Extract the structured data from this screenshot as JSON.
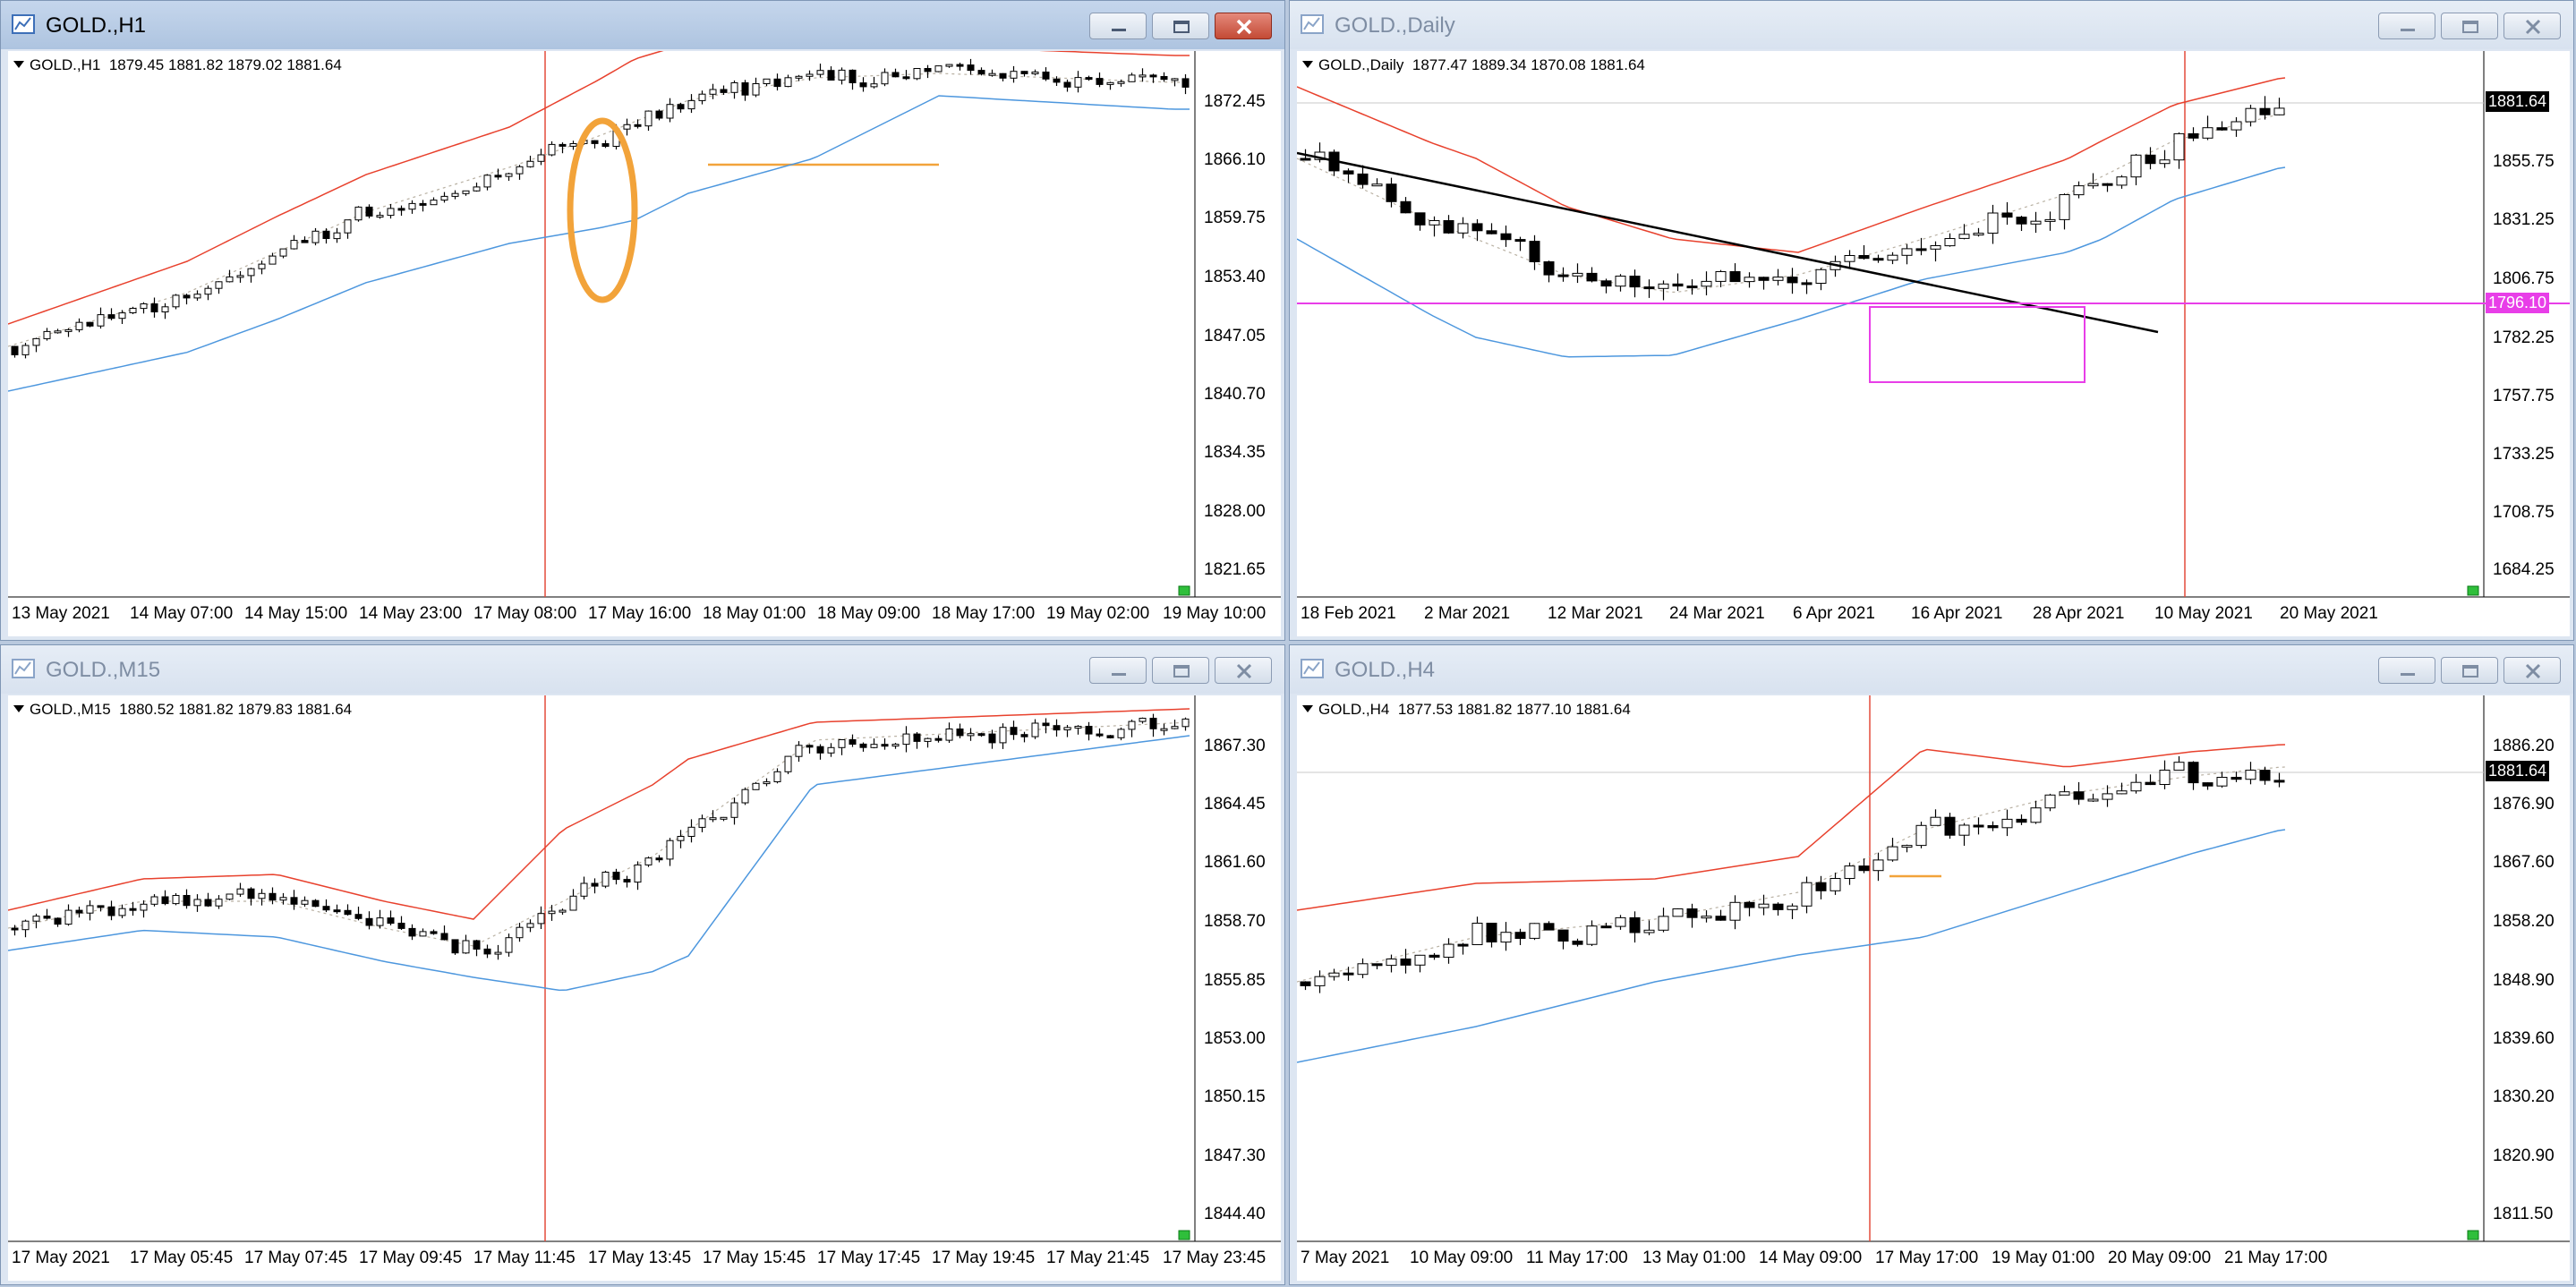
{
  "colors": {
    "bb_upper_lower_red": "#e8412d",
    "bb_blue": "#4d97de",
    "bb_mid": "#b9b1a3",
    "vline": "#e34b3b",
    "orange": "#f2a33a",
    "magenta": "#e83ee8",
    "bear_candle": "#000000",
    "bull_candle": "#ffffff"
  },
  "icons": [
    "chart-window-icon",
    "minimize-icon",
    "restore-icon",
    "close-icon",
    "dropdown-triangle-icon"
  ],
  "windows": [
    {
      "id": "h1",
      "title": "GOLD.,H1",
      "active": true,
      "symbol_label": "GOLD.,H1",
      "ohlc": "1879.45 1881.82 1879.02 1881.64",
      "price_ticks": [
        "1872.45",
        "1866.10",
        "1859.75",
        "1853.40",
        "1847.05",
        "1840.70",
        "1834.35",
        "1828.00",
        "1821.65"
      ],
      "time_ticks": [
        "13 May 2021",
        "14 May 07:00",
        "14 May 15:00",
        "14 May 23:00",
        "17 May 08:00",
        "17 May 16:00",
        "18 May 01:00",
        "18 May 09:00",
        "18 May 17:00",
        "19 May 02:00",
        "19 May 10:00"
      ]
    },
    {
      "id": "daily",
      "title": "GOLD.,Daily",
      "active": false,
      "symbol_label": "GOLD.,Daily",
      "ohlc": "1877.47 1889.34 1870.08 1881.64",
      "price_ticks": [
        "1855.75",
        "1831.25",
        "1806.75",
        "1782.25",
        "1757.75",
        "1733.25",
        "1708.75",
        "1684.25"
      ],
      "current_price": "1881.64",
      "level_price": "1796.10",
      "time_ticks": [
        "18 Feb 2021",
        "2 Mar 2021",
        "12 Mar 2021",
        "24 Mar 2021",
        "6 Apr 2021",
        "16 Apr 2021",
        "28 Apr 2021",
        "10 May 2021",
        "20 May 2021"
      ]
    },
    {
      "id": "m15",
      "title": "GOLD.,M15",
      "active": false,
      "symbol_label": "GOLD.,M15",
      "ohlc": "1880.52 1881.82 1879.83 1881.64",
      "price_ticks": [
        "1867.30",
        "1864.45",
        "1861.60",
        "1858.70",
        "1855.85",
        "1853.00",
        "1850.15",
        "1847.30",
        "1844.40"
      ],
      "time_ticks": [
        "17 May 2021",
        "17 May 05:45",
        "17 May 07:45",
        "17 May 09:45",
        "17 May 11:45",
        "17 May 13:45",
        "17 May 15:45",
        "17 May 17:45",
        "17 May 19:45",
        "17 May 21:45",
        "17 May 23:45"
      ]
    },
    {
      "id": "h4",
      "title": "GOLD.,H4",
      "active": false,
      "symbol_label": "GOLD.,H4",
      "ohlc": "1877.53 1881.82 1877.10 1881.64",
      "price_ticks": [
        "1886.20",
        "1876.90",
        "1867.60",
        "1858.20",
        "1848.90",
        "1839.60",
        "1830.20",
        "1820.90",
        "1811.50"
      ],
      "current_price": "1881.64",
      "time_ticks": [
        "7 May 2021",
        "10 May 09:00",
        "11 May 17:00",
        "13 May 01:00",
        "14 May 09:00",
        "17 May 17:00",
        "19 May 01:00",
        "20 May 09:00",
        "21 May 17:00"
      ]
    }
  ]
}
